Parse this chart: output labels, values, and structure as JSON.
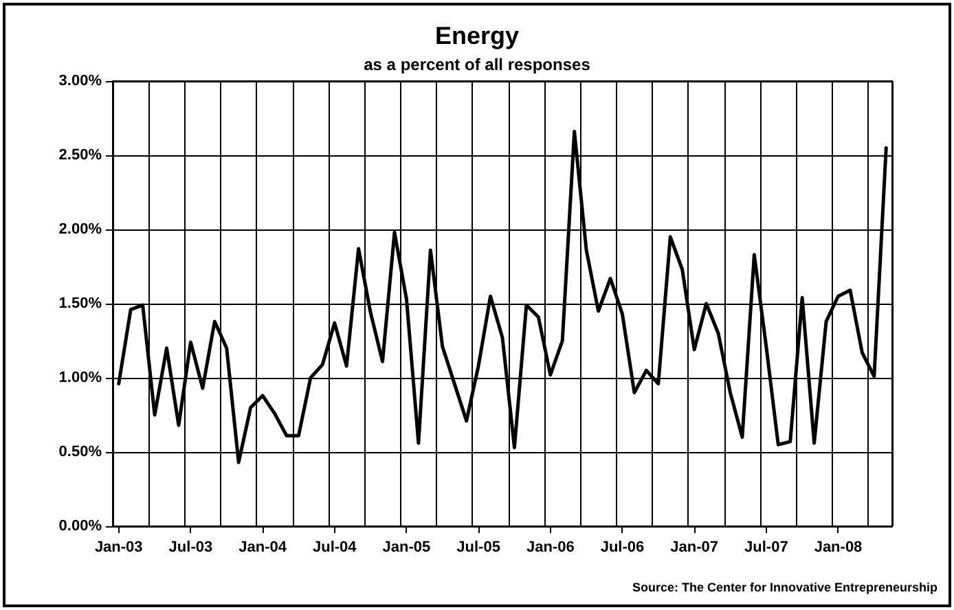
{
  "chart_data": {
    "type": "line",
    "title": "Energy",
    "subtitle": "as a percent of all responses",
    "categories": [
      "Jan-03",
      null,
      null,
      null,
      null,
      null,
      "Jul-03",
      null,
      null,
      null,
      null,
      null,
      "Jan-04",
      null,
      null,
      null,
      null,
      null,
      "Jul-04",
      null,
      null,
      null,
      null,
      null,
      "Jan-05",
      null,
      null,
      null,
      null,
      null,
      "Jul-05",
      null,
      null,
      null,
      null,
      null,
      "Jan-06",
      null,
      null,
      null,
      null,
      null,
      "Jul-06",
      null,
      null,
      null,
      null,
      null,
      "Jan-07",
      null,
      null,
      null,
      null,
      null,
      "Jul-07",
      null,
      null,
      null,
      null,
      null,
      "Jan-08",
      null,
      null,
      null,
      null
    ],
    "series": [
      {
        "color": "#000000",
        "values": [
          0.96,
          1.46,
          1.49,
          0.75,
          1.2,
          0.68,
          1.24,
          0.93,
          1.38,
          1.2,
          0.43,
          0.8,
          0.88,
          0.76,
          0.61,
          0.61,
          1.0,
          1.09,
          1.37,
          1.08,
          1.87,
          1.44,
          1.11,
          1.98,
          1.53,
          0.56,
          1.86,
          1.21,
          0.96,
          0.71,
          1.08,
          1.55,
          1.27,
          0.53,
          1.49,
          1.41,
          1.02,
          1.25,
          2.66,
          1.86,
          1.45,
          1.67,
          1.43,
          0.9,
          1.05,
          0.96,
          1.95,
          1.73,
          1.19,
          1.5,
          1.3,
          0.9,
          0.6,
          1.83,
          1.21,
          0.55,
          0.57,
          1.54,
          0.56,
          1.38,
          1.55,
          1.59,
          1.17,
          1.01,
          2.55
        ]
      }
    ],
    "ylim": [
      0,
      3
    ],
    "yticks": [
      {
        "value": 0,
        "label": "0.00%"
      },
      {
        "value": 0.5,
        "label": "0.50%"
      },
      {
        "value": 1,
        "label": "1.00%"
      },
      {
        "value": 1.5,
        "label": "1.50%"
      },
      {
        "value": 2,
        "label": "2.00%"
      },
      {
        "value": 2.5,
        "label": "2.50%"
      },
      {
        "value": 3,
        "label": "3.00%"
      }
    ],
    "grid": true,
    "annotations": [
      "Source: The Center for Innovative Entrepreneurship"
    ]
  }
}
